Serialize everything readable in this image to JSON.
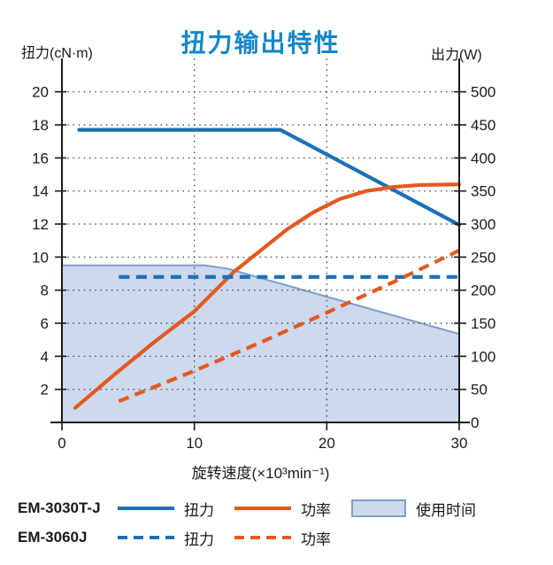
{
  "chart": {
    "title": "扭力输出特性",
    "left_axis_label": "扭力(cN·m)",
    "right_axis_label": "出力(W)",
    "x_axis_label": "旋转速度(×10³min⁻¹)"
  },
  "chart_data": {
    "type": "line",
    "title": "扭力输出特性",
    "x_axis": {
      "label": "旋转速度(×10³min⁻¹)",
      "min": 0,
      "max": 30,
      "ticks": [
        0,
        10,
        20,
        30
      ],
      "grid_x": [
        10,
        20
      ]
    },
    "left_axis": {
      "label": "扭力(cN·m)",
      "unit": "cN·m",
      "min": 0,
      "max": 21,
      "ticks": [
        2,
        4,
        6,
        8,
        10,
        12,
        14,
        16,
        18,
        20
      ]
    },
    "right_axis": {
      "label": "出力(W)",
      "unit": "W",
      "min": 0,
      "max": 525,
      "ticks": [
        0,
        50,
        100,
        150,
        200,
        250,
        300,
        350,
        400,
        450,
        500
      ]
    },
    "grid_style": "dotted",
    "series": [
      {
        "id": "em3030tj-torque",
        "model": "EM-3030T-J",
        "label": "扭力",
        "axis": "left",
        "line": "solid",
        "color": "#1c70b6",
        "points": [
          [
            1.3,
            17.7
          ],
          [
            16.5,
            17.7
          ],
          [
            30,
            11.95
          ]
        ]
      },
      {
        "id": "em3030tj-power",
        "model": "EM-3030T-J",
        "label": "功率",
        "axis": "right",
        "line": "solid",
        "color": "#e4591f",
        "points": [
          [
            1,
            22
          ],
          [
            4,
            73
          ],
          [
            7,
            122
          ],
          [
            10,
            168
          ],
          [
            13,
            228
          ],
          [
            15,
            260
          ],
          [
            17,
            292
          ],
          [
            19,
            318
          ],
          [
            21,
            338
          ],
          [
            23,
            350
          ],
          [
            25,
            356
          ],
          [
            27,
            359
          ],
          [
            30,
            360
          ]
        ]
      },
      {
        "id": "em3060j-torque",
        "model": "EM-3060J",
        "label": "扭力",
        "axis": "left",
        "line": "dashed",
        "color": "#1c70b6",
        "points": [
          [
            4.3,
            8.8
          ],
          [
            30,
            8.8
          ]
        ]
      },
      {
        "id": "em3060j-power",
        "model": "EM-3060J",
        "label": "功率",
        "axis": "right",
        "line": "dashed",
        "color": "#e4591f",
        "points": [
          [
            4.3,
            32
          ],
          [
            10,
            78
          ],
          [
            15,
            121
          ],
          [
            20,
            166
          ],
          [
            25,
            212
          ],
          [
            30,
            260
          ]
        ]
      }
    ],
    "area": {
      "id": "usage-time-area",
      "label": "使用时间",
      "fill": "#cdd9ee",
      "border": "#7f9fcc",
      "points": [
        [
          0,
          9.5
        ],
        [
          10.8,
          9.5
        ],
        [
          12.5,
          9.3
        ],
        [
          30,
          5.35
        ]
      ]
    }
  },
  "legend": {
    "rows": [
      {
        "model": "EM-3030T-J",
        "items": [
          {
            "swatch": "solid-blue-line",
            "label": "扭力"
          },
          {
            "swatch": "solid-orange-line",
            "label": "功率"
          },
          {
            "swatch": "usage-area-box",
            "label": "使用时间"
          }
        ]
      },
      {
        "model": "EM-3060J",
        "items": [
          {
            "swatch": "dashed-blue-line",
            "label": "扭力"
          },
          {
            "swatch": "dashed-orange-line",
            "label": "功率"
          }
        ]
      }
    ]
  },
  "colors": {
    "title_blue": "#1486c9",
    "line_blue": "#1c70b6",
    "line_orange": "#e4591f",
    "area_fill": "#cdd9ee",
    "area_border": "#7f9fcc",
    "text": "#1a1a1a"
  }
}
